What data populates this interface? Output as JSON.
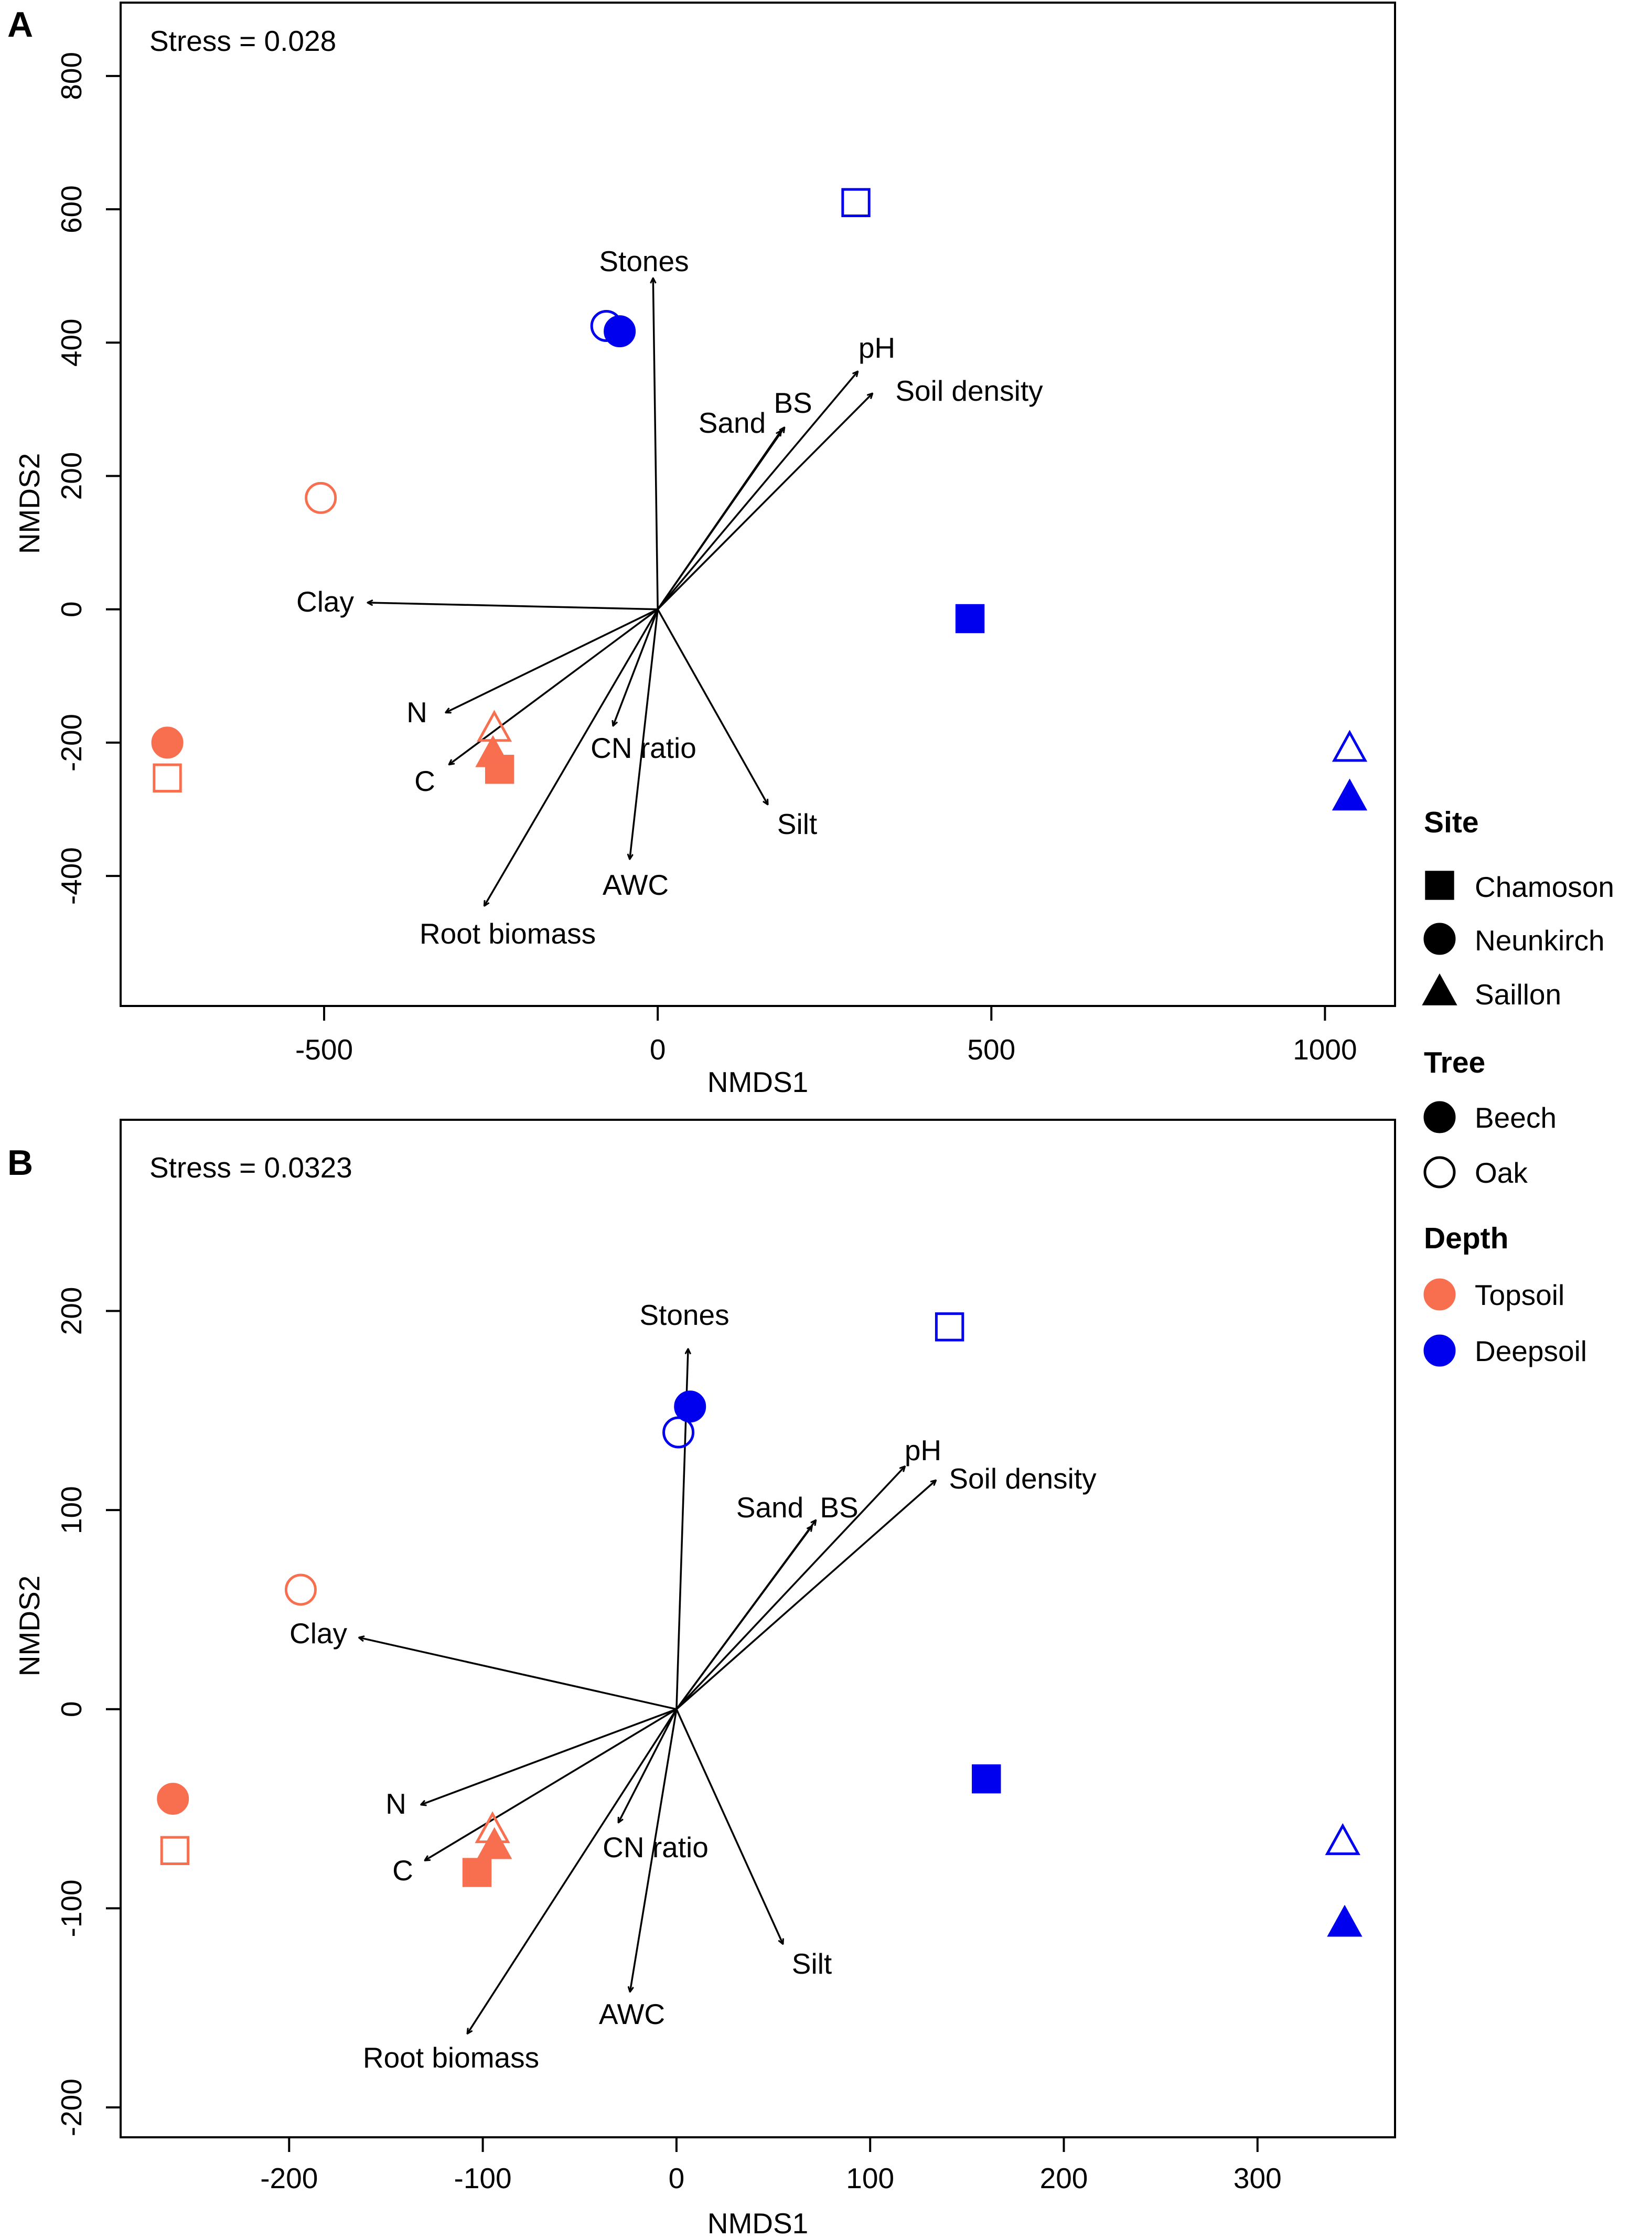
{
  "chart_data": [
    {
      "type": "scatter",
      "panel": "A",
      "stress": "Stress = 0.028",
      "xlabel": "NMDS1",
      "ylabel": "NMDS2",
      "xlim": [
        -805,
        1105
      ],
      "ylim": [
        -595,
        910
      ],
      "xticks": [
        -500,
        0,
        500,
        1000
      ],
      "xtick_labels": [
        "-500",
        "0",
        "500",
        "1000"
      ],
      "yticks": [
        -400,
        -200,
        0,
        200,
        400,
        600,
        800
      ],
      "ytick_labels": [
        "-400",
        "-200",
        "0",
        "200",
        "400",
        "600",
        "800"
      ],
      "points": [
        {
          "site": "Chamoson",
          "tree": "Oak",
          "depth": "Deepsoil",
          "x": 297,
          "y": 610
        },
        {
          "site": "Neunkirch",
          "tree": "Oak",
          "depth": "Deepsoil",
          "x": -77,
          "y": 425
        },
        {
          "site": "Neunkirch",
          "tree": "Beech",
          "depth": "Deepsoil",
          "x": -57,
          "y": 417
        },
        {
          "site": "Neunkirch",
          "tree": "Oak",
          "depth": "Topsoil",
          "x": -505,
          "y": 167
        },
        {
          "site": "Chamoson",
          "tree": "Beech",
          "depth": "Deepsoil",
          "x": 468,
          "y": -14
        },
        {
          "site": "Neunkirch",
          "tree": "Beech",
          "depth": "Topsoil",
          "x": -735,
          "y": -200
        },
        {
          "site": "Chamoson",
          "tree": "Oak",
          "depth": "Topsoil",
          "x": -735,
          "y": -253
        },
        {
          "site": "Saillon",
          "tree": "Oak",
          "depth": "Topsoil",
          "x": -245,
          "y": -180
        },
        {
          "site": "Saillon",
          "tree": "Beech",
          "depth": "Topsoil",
          "x": -247,
          "y": -218
        },
        {
          "site": "Chamoson",
          "tree": "Beech",
          "depth": "Topsoil",
          "x": -237,
          "y": -240
        },
        {
          "site": "Saillon",
          "tree": "Oak",
          "depth": "Deepsoil",
          "x": 1037,
          "y": -210
        },
        {
          "site": "Saillon",
          "tree": "Beech",
          "depth": "Deepsoil",
          "x": 1037,
          "y": -283
        }
      ],
      "vectors": [
        {
          "label": "Stones",
          "x": -7,
          "y": 497
        },
        {
          "label": "pH",
          "x": 300,
          "y": 357
        },
        {
          "label": "BS",
          "x": 190,
          "y": 273
        },
        {
          "label": "Sand",
          "x": 185,
          "y": 268
        },
        {
          "label": "Soil density",
          "x": 322,
          "y": 324
        },
        {
          "label": "Clay",
          "x": -435,
          "y": 10
        },
        {
          "label": "N",
          "x": -318,
          "y": -155
        },
        {
          "label": "C",
          "x": -313,
          "y": -233
        },
        {
          "label": "CN ratio",
          "x": -67,
          "y": -175
        },
        {
          "label": "AWC",
          "x": -42,
          "y": -375
        },
        {
          "label": "Silt",
          "x": 165,
          "y": -293
        },
        {
          "label": "Root biomass",
          "x": -260,
          "y": -445
        }
      ]
    },
    {
      "type": "scatter",
      "panel": "B",
      "stress": "Stress = 0.0323",
      "xlabel": "NMDS1",
      "ylabel": "NMDS2",
      "xlim": [
        -287,
        371
      ],
      "ylim": [
        -215,
        296
      ],
      "xticks": [
        -200,
        -100,
        0,
        100,
        200,
        300
      ],
      "xtick_labels": [
        "-200",
        "-100",
        "0",
        "100",
        "200",
        "300"
      ],
      "yticks": [
        -200,
        -100,
        0,
        100,
        200
      ],
      "ytick_labels": [
        "-200",
        "-100",
        "0",
        "100",
        "200"
      ],
      "points": [
        {
          "site": "Chamoson",
          "tree": "Oak",
          "depth": "Deepsoil",
          "x": 141,
          "y": 192
        },
        {
          "site": "Neunkirch",
          "tree": "Beech",
          "depth": "Deepsoil",
          "x": 7,
          "y": 152
        },
        {
          "site": "Neunkirch",
          "tree": "Oak",
          "depth": "Deepsoil",
          "x": 1,
          "y": 139
        },
        {
          "site": "Neunkirch",
          "tree": "Oak",
          "depth": "Topsoil",
          "x": -194,
          "y": 60
        },
        {
          "site": "Chamoson",
          "tree": "Beech",
          "depth": "Deepsoil",
          "x": 160,
          "y": -35
        },
        {
          "site": "Neunkirch",
          "tree": "Beech",
          "depth": "Topsoil",
          "x": -260,
          "y": -45
        },
        {
          "site": "Chamoson",
          "tree": "Oak",
          "depth": "Topsoil",
          "x": -259,
          "y": -71
        },
        {
          "site": "Saillon",
          "tree": "Oak",
          "depth": "Topsoil",
          "x": -95,
          "y": -61
        },
        {
          "site": "Saillon",
          "tree": "Beech",
          "depth": "Topsoil",
          "x": -94,
          "y": -69
        },
        {
          "site": "Chamoson",
          "tree": "Beech",
          "depth": "Topsoil",
          "x": -103,
          "y": -82
        },
        {
          "site": "Saillon",
          "tree": "Oak",
          "depth": "Deepsoil",
          "x": 344,
          "y": -67
        },
        {
          "site": "Saillon",
          "tree": "Beech",
          "depth": "Deepsoil",
          "x": 345,
          "y": -108
        }
      ],
      "vectors": [
        {
          "label": "Stones",
          "x": 6,
          "y": 181
        },
        {
          "label": "pH",
          "x": 118,
          "y": 122
        },
        {
          "label": "BS",
          "x": 72,
          "y": 95
        },
        {
          "label": "Sand",
          "x": 70,
          "y": 92
        },
        {
          "label": "Soil density",
          "x": 134,
          "y": 115
        },
        {
          "label": "Clay",
          "x": -164,
          "y": 36
        },
        {
          "label": "N",
          "x": -132,
          "y": -48
        },
        {
          "label": "C",
          "x": -130,
          "y": -76
        },
        {
          "label": "CN ratio",
          "x": -30,
          "y": -57
        },
        {
          "label": "AWC",
          "x": -24,
          "y": -142
        },
        {
          "label": "Silt",
          "x": 55,
          "y": -118
        },
        {
          "label": "Root biomass",
          "x": -108,
          "y": -163
        }
      ]
    }
  ],
  "legend": {
    "site_title": "Site",
    "site_items": [
      {
        "label": "Chamoson",
        "shape": "square"
      },
      {
        "label": "Neunkirch",
        "shape": "circle"
      },
      {
        "label": "Saillon",
        "shape": "triangle"
      }
    ],
    "tree_title": "Tree",
    "tree_items": [
      {
        "label": "Beech",
        "fill": "filled"
      },
      {
        "label": "Oak",
        "fill": "open"
      }
    ],
    "depth_title": "Depth",
    "depth_items": [
      {
        "label": "Topsoil",
        "color": "#f86f50"
      },
      {
        "label": "Deepsoil",
        "color": "#0000ee"
      }
    ]
  },
  "colors": {
    "Topsoil": "#f86f50",
    "Deepsoil": "#0000ee"
  }
}
